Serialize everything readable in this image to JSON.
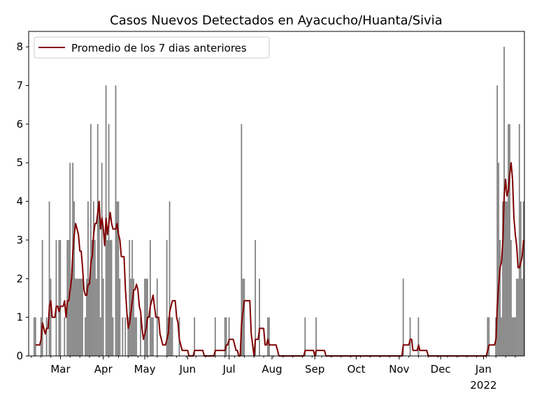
{
  "chart_data": {
    "type": "bar",
    "title": "Casos Nuevos Detectados en Ayacucho/Huanta/Sivia",
    "xlabel": "",
    "ylabel": "",
    "start_date": "2021-02-06",
    "n_days": 359,
    "xlim_days": [
      0,
      358.6
    ],
    "ylim": [
      0,
      8.4
    ],
    "yticks": [
      0,
      1,
      2,
      3,
      4,
      5,
      6,
      7,
      8
    ],
    "xticks": [
      {
        "day": 23,
        "label": "Mar"
      },
      {
        "day": 54,
        "label": "Apr"
      },
      {
        "day": 84,
        "label": "May"
      },
      {
        "day": 115,
        "label": "Jun"
      },
      {
        "day": 145,
        "label": "Jul"
      },
      {
        "day": 176,
        "label": "Aug"
      },
      {
        "day": 207,
        "label": "Sep"
      },
      {
        "day": 237,
        "label": "Oct"
      },
      {
        "day": 268,
        "label": "Nov"
      },
      {
        "day": 298,
        "label": "Dec"
      },
      {
        "day": 329,
        "label": "Jan",
        "sublabel": "2022"
      }
    ],
    "grid": false,
    "legend": {
      "position": "top-left",
      "entries": [
        "Promedio de los 7 dias anteriores"
      ]
    },
    "bar_color": "#808080",
    "line_color": "#800000",
    "rolling_window": 7,
    "daily_cases": [
      [
        4,
        1
      ],
      [
        5,
        1
      ],
      [
        9,
        1
      ],
      [
        10,
        3
      ],
      [
        13,
        1
      ],
      [
        15,
        4
      ],
      [
        16,
        2
      ],
      [
        20,
        3
      ],
      [
        22,
        3
      ],
      [
        23,
        3
      ],
      [
        26,
        1
      ],
      [
        28,
        3
      ],
      [
        29,
        3
      ],
      [
        30,
        5
      ],
      [
        31,
        2
      ],
      [
        32,
        5
      ],
      [
        33,
        4
      ],
      [
        34,
        2
      ],
      [
        35,
        2
      ],
      [
        36,
        2
      ],
      [
        37,
        2
      ],
      [
        38,
        2
      ],
      [
        39,
        2
      ],
      [
        41,
        1
      ],
      [
        42,
        2
      ],
      [
        43,
        4
      ],
      [
        44,
        2
      ],
      [
        45,
        6
      ],
      [
        46,
        3
      ],
      [
        47,
        4
      ],
      [
        48,
        3
      ],
      [
        49,
        2
      ],
      [
        50,
        6
      ],
      [
        51,
        4
      ],
      [
        52,
        1
      ],
      [
        53,
        5
      ],
      [
        54,
        2
      ],
      [
        56,
        7
      ],
      [
        57,
        3
      ],
      [
        58,
        6
      ],
      [
        59,
        3
      ],
      [
        60,
        3
      ],
      [
        61,
        1
      ],
      [
        63,
        7
      ],
      [
        64,
        4
      ],
      [
        65,
        4
      ],
      [
        66,
        2
      ],
      [
        68,
        1
      ],
      [
        70,
        1
      ],
      [
        72,
        1
      ],
      [
        73,
        3
      ],
      [
        74,
        2
      ],
      [
        75,
        3
      ],
      [
        76,
        2
      ],
      [
        77,
        1
      ],
      [
        78,
        1
      ],
      [
        81,
        1
      ],
      [
        84,
        2
      ],
      [
        85,
        2
      ],
      [
        86,
        2
      ],
      [
        88,
        3
      ],
      [
        89,
        1
      ],
      [
        90,
        1
      ],
      [
        93,
        2
      ],
      [
        100,
        3
      ],
      [
        101,
        1
      ],
      [
        102,
        4
      ],
      [
        103,
        1
      ],
      [
        104,
        1
      ],
      [
        109,
        1
      ],
      [
        120,
        1
      ],
      [
        135,
        1
      ],
      [
        142,
        1
      ],
      [
        143,
        1
      ],
      [
        145,
        1
      ],
      [
        154,
        6
      ],
      [
        155,
        2
      ],
      [
        156,
        2
      ],
      [
        164,
        3
      ],
      [
        167,
        2
      ],
      [
        173,
        1
      ],
      [
        174,
        1
      ],
      [
        200,
        1
      ],
      [
        208,
        1
      ],
      [
        271,
        2
      ],
      [
        276,
        1
      ],
      [
        282,
        1
      ],
      [
        332,
        1
      ],
      [
        333,
        1
      ],
      [
        338,
        1
      ],
      [
        339,
        7
      ],
      [
        340,
        5
      ],
      [
        341,
        3
      ],
      [
        342,
        1
      ],
      [
        343,
        4
      ],
      [
        344,
        8
      ],
      [
        345,
        4
      ],
      [
        346,
        4
      ],
      [
        347,
        6
      ],
      [
        348,
        6
      ],
      [
        349,
        3
      ],
      [
        350,
        1
      ],
      [
        351,
        1
      ],
      [
        352,
        1
      ],
      [
        353,
        2
      ],
      [
        354,
        2
      ],
      [
        355,
        6
      ],
      [
        356,
        4
      ],
      [
        357,
        2
      ],
      [
        358,
        4
      ]
    ]
  }
}
